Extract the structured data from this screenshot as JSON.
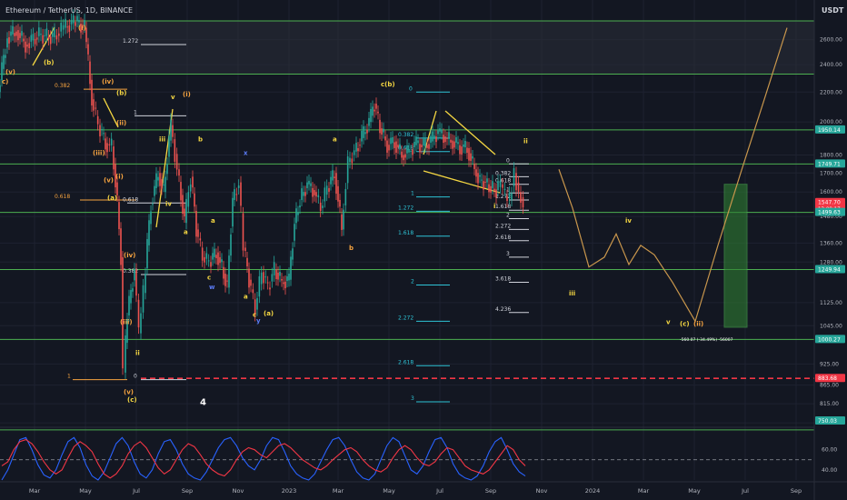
{
  "header": {
    "symbol_title": "Ethereum / TetherUS, 1D, BINANCE",
    "currency": "USDT"
  },
  "chart_data": {
    "type": "line",
    "ylim": [
      765,
      2800
    ],
    "y_scale": "log",
    "y_ticks": [
      2600,
      2400,
      2200,
      2000,
      1800,
      1700,
      1600,
      1480,
      1360,
      1280,
      1125,
      1045,
      925,
      865,
      815,
      767
    ],
    "x_ticks": [
      "Mar",
      "May",
      "Jul",
      "Sep",
      "Nov",
      "2023",
      "Mar",
      "May",
      "Jul",
      "Sep",
      "Nov",
      "2024",
      "Mar",
      "May",
      "Jul",
      "Sep"
    ],
    "price_tags": [
      {
        "label": "1950.14",
        "value": 1950.14,
        "color": "#26a69a"
      },
      {
        "label": "1749.71",
        "value": 1749.71,
        "color": "#26a69a"
      },
      {
        "label": "1547.70",
        "value": 1547.7,
        "color": "#f23645",
        "sub": "13:09:17"
      },
      {
        "label": "1499.63",
        "value": 1499.63,
        "color": "#26a69a"
      },
      {
        "label": "1249.94",
        "value": 1249.94,
        "color": "#26a69a"
      },
      {
        "label": "1000.27",
        "value": 1000.27,
        "color": "#26a69a"
      },
      {
        "label": "883.68",
        "value": 883.68,
        "color": "#f23645"
      },
      {
        "label": "750.03",
        "value": 750.03,
        "color": "#26a69a"
      }
    ],
    "horizontal_levels": [
      2760,
      2330,
      1950.14,
      1749.71,
      1499.63,
      1249.94,
      1000.27,
      750.03
    ],
    "support_line": 883.68,
    "price_series": [
      {
        "x": 0,
        "y": 2200
      },
      {
        "x": 10,
        "y": 2620
      },
      {
        "x": 20,
        "y": 2680
      },
      {
        "x": 30,
        "y": 2560
      },
      {
        "x": 45,
        "y": 2640
      },
      {
        "x": 60,
        "y": 2620
      },
      {
        "x": 72,
        "y": 2700
      },
      {
        "x": 85,
        "y": 2760
      },
      {
        "x": 95,
        "y": 2700
      },
      {
        "x": 103,
        "y": 2150
      },
      {
        "x": 110,
        "y": 1980
      },
      {
        "x": 118,
        "y": 1870
      },
      {
        "x": 125,
        "y": 1850
      },
      {
        "x": 131,
        "y": 1550
      },
      {
        "x": 135,
        "y": 1300
      },
      {
        "x": 138,
        "y": 900
      },
      {
        "x": 142,
        "y": 1080
      },
      {
        "x": 150,
        "y": 1250
      },
      {
        "x": 155,
        "y": 1020
      },
      {
        "x": 160,
        "y": 1160
      },
      {
        "x": 168,
        "y": 1540
      },
      {
        "x": 176,
        "y": 1700
      },
      {
        "x": 182,
        "y": 1600
      },
      {
        "x": 190,
        "y": 1980
      },
      {
        "x": 197,
        "y": 1720
      },
      {
        "x": 205,
        "y": 1450
      },
      {
        "x": 212,
        "y": 1680
      },
      {
        "x": 218,
        "y": 1420
      },
      {
        "x": 225,
        "y": 1300
      },
      {
        "x": 232,
        "y": 1280
      },
      {
        "x": 240,
        "y": 1320
      },
      {
        "x": 246,
        "y": 1260
      },
      {
        "x": 252,
        "y": 1180
      },
      {
        "x": 258,
        "y": 1560
      },
      {
        "x": 265,
        "y": 1650
      },
      {
        "x": 270,
        "y": 1340
      },
      {
        "x": 276,
        "y": 1210
      },
      {
        "x": 283,
        "y": 1100
      },
      {
        "x": 290,
        "y": 1240
      },
      {
        "x": 297,
        "y": 1180
      },
      {
        "x": 304,
        "y": 1250
      },
      {
        "x": 312,
        "y": 1200
      },
      {
        "x": 320,
        "y": 1210
      },
      {
        "x": 326,
        "y": 1450
      },
      {
        "x": 332,
        "y": 1560
      },
      {
        "x": 340,
        "y": 1640
      },
      {
        "x": 348,
        "y": 1600
      },
      {
        "x": 355,
        "y": 1520
      },
      {
        "x": 362,
        "y": 1620
      },
      {
        "x": 370,
        "y": 1700
      },
      {
        "x": 378,
        "y": 1420
      },
      {
        "x": 385,
        "y": 1760
      },
      {
        "x": 392,
        "y": 1820
      },
      {
        "x": 400,
        "y": 1900
      },
      {
        "x": 408,
        "y": 2000
      },
      {
        "x": 414,
        "y": 2120
      },
      {
        "x": 420,
        "y": 1960
      },
      {
        "x": 428,
        "y": 1860
      },
      {
        "x": 436,
        "y": 1880
      },
      {
        "x": 444,
        "y": 1800
      },
      {
        "x": 452,
        "y": 1820
      },
      {
        "x": 460,
        "y": 1870
      },
      {
        "x": 468,
        "y": 1850
      },
      {
        "x": 476,
        "y": 1880
      },
      {
        "x": 484,
        "y": 1940
      },
      {
        "x": 492,
        "y": 1900
      },
      {
        "x": 500,
        "y": 1880
      },
      {
        "x": 508,
        "y": 1850
      },
      {
        "x": 516,
        "y": 1840
      },
      {
        "x": 524,
        "y": 1720
      },
      {
        "x": 530,
        "y": 1660
      },
      {
        "x": 536,
        "y": 1650
      },
      {
        "x": 542,
        "y": 1620
      },
      {
        "x": 548,
        "y": 1610
      },
      {
        "x": 553,
        "y": 1640
      },
      {
        "x": 558,
        "y": 1580
      },
      {
        "x": 563,
        "y": 1560
      },
      {
        "x": 568,
        "y": 1700
      },
      {
        "x": 573,
        "y": 1600
      },
      {
        "x": 578,
        "y": 1547.7
      }
    ],
    "projection_path": [
      {
        "x": 615,
        "y": 1720
      },
      {
        "x": 630,
        "y": 1520
      },
      {
        "x": 648,
        "y": 1260
      },
      {
        "x": 665,
        "y": 1300
      },
      {
        "x": 678,
        "y": 1400
      },
      {
        "x": 692,
        "y": 1270
      },
      {
        "x": 705,
        "y": 1350
      },
      {
        "x": 720,
        "y": 1310
      },
      {
        "x": 740,
        "y": 1200
      },
      {
        "x": 765,
        "y": 1060
      },
      {
        "x": 790,
        "y": 1350
      },
      {
        "x": 815,
        "y": 1700
      },
      {
        "x": 840,
        "y": 2130
      },
      {
        "x": 866,
        "y": 2700
      }
    ],
    "target_box": {
      "top": 1640,
      "bottom": 1040,
      "label": "-560.07 (-34.49%) -56007"
    },
    "fib_levels": [
      {
        "label": "1.272",
        "value": 2560
      },
      {
        "label": "0.382",
        "value": 2220
      },
      {
        "label": "1",
        "value": 2040
      },
      {
        "label": "0.618",
        "value": 1560
      },
      {
        "label": "0.382",
        "value": 1230
      },
      {
        "label": "1",
        "value": 880
      },
      {
        "label": "0",
        "value": 880
      },
      {
        "label": "0.618",
        "value": 1545
      },
      {
        "label": "0",
        "value": 2200
      },
      {
        "label": "0.382",
        "value": 1900
      },
      {
        "label": "0.618",
        "value": 1820
      },
      {
        "label": "1",
        "value": 1575
      },
      {
        "label": "1.272",
        "value": 1505
      },
      {
        "label": "1.618",
        "value": 1390
      },
      {
        "label": "2",
        "value": 1190
      },
      {
        "label": "2.272",
        "value": 1060
      },
      {
        "label": "2.618",
        "value": 920
      },
      {
        "label": "3",
        "value": 820
      },
      {
        "label": "0",
        "value": 1750
      },
      {
        "label": "0.382",
        "value": 1680
      },
      {
        "label": "0.618",
        "value": 1640
      },
      {
        "label": "1",
        "value": 1595
      },
      {
        "label": "1.272",
        "value": 1560
      },
      {
        "label": "1.618",
        "value": 1510
      },
      {
        "label": "2",
        "value": 1470
      },
      {
        "label": "2.272",
        "value": 1420
      },
      {
        "label": "2.618",
        "value": 1370
      },
      {
        "label": "3",
        "value": 1300
      },
      {
        "label": "3.618",
        "value": 1200
      },
      {
        "label": "4.236",
        "value": 1090
      }
    ],
    "wave_labels": [
      {
        "text": "(v)",
        "x": 6,
        "y": 2330,
        "color": "#f7a440"
      },
      {
        "text": "c)",
        "x": 2,
        "y": 2260,
        "color": "#f7a440"
      },
      {
        "text": "(b)",
        "x": 48,
        "y": 2400,
        "color": "#f5d742"
      },
      {
        "text": "(i)",
        "x": 86,
        "y": 2680,
        "color": "#f7a440"
      },
      {
        "text": "(iv)",
        "x": 112,
        "y": 2260,
        "color": "#f7a440"
      },
      {
        "text": "(b)",
        "x": 128,
        "y": 2180,
        "color": "#f5d742"
      },
      {
        "text": "(ii)",
        "x": 128,
        "y": 1980,
        "color": "#f7a440"
      },
      {
        "text": "(iii)",
        "x": 102,
        "y": 1800,
        "color": "#f7a440"
      },
      {
        "text": "(v)",
        "x": 114,
        "y": 1650,
        "color": "#f7a440"
      },
      {
        "text": "(i)",
        "x": 127,
        "y": 1670,
        "color": "#f7a440"
      },
      {
        "text": "(a)",
        "x": 118,
        "y": 1560,
        "color": "#f5d742"
      },
      {
        "text": "(iv)",
        "x": 136,
        "y": 1300,
        "color": "#f7a440"
      },
      {
        "text": "(iii)",
        "x": 132,
        "y": 1050,
        "color": "#f7a440"
      },
      {
        "text": "ii",
        "x": 149,
        "y": 952,
        "color": "#f5d742"
      },
      {
        "text": "(v)",
        "x": 136,
        "y": 840,
        "color": "#f7a440"
      },
      {
        "text": "(c)",
        "x": 140,
        "y": 820,
        "color": "#f5d742"
      },
      {
        "text": "v",
        "x": 188,
        "y": 2150,
        "color": "#f5d742"
      },
      {
        "text": "(i)",
        "x": 201,
        "y": 2170,
        "color": "#f7a440"
      },
      {
        "text": "iii",
        "x": 175,
        "y": 1880,
        "color": "#f5d742"
      },
      {
        "text": "b",
        "x": 218,
        "y": 1880,
        "color": "#f5d742"
      },
      {
        "text": "iv",
        "x": 182,
        "y": 1530,
        "color": "#f5d742"
      },
      {
        "text": "a",
        "x": 202,
        "y": 1400,
        "color": "#f5d742"
      },
      {
        "text": "a",
        "x": 232,
        "y": 1450,
        "color": "#f5d742"
      },
      {
        "text": "c",
        "x": 228,
        "y": 1210,
        "color": "#f5d742"
      },
      {
        "text": "w",
        "x": 230,
        "y": 1175,
        "color": "#5b7cf7"
      },
      {
        "text": "x",
        "x": 268,
        "y": 1800,
        "color": "#5b7cf7"
      },
      {
        "text": "a",
        "x": 268,
        "y": 1140,
        "color": "#f5d742"
      },
      {
        "text": "c",
        "x": 278,
        "y": 1075,
        "color": "#f5d742"
      },
      {
        "text": "(a)",
        "x": 290,
        "y": 1080,
        "color": "#f5d742"
      },
      {
        "text": "y",
        "x": 282,
        "y": 1055,
        "color": "#5b7cf7"
      },
      {
        "text": "a",
        "x": 366,
        "y": 1880,
        "color": "#f5d742"
      },
      {
        "text": "b",
        "x": 384,
        "y": 1330,
        "color": "#f7a440"
      },
      {
        "text": "c(b)",
        "x": 419,
        "y": 2240,
        "color": "#f5d742"
      },
      {
        "text": "ii",
        "x": 576,
        "y": 1870,
        "color": "#f5d742"
      },
      {
        "text": "i",
        "x": 543,
        "y": 1520,
        "color": "#f5d742"
      },
      {
        "text": "iv",
        "x": 688,
        "y": 1450,
        "color": "#f5d742"
      },
      {
        "text": "iii",
        "x": 626,
        "y": 1150,
        "color": "#f5d742"
      },
      {
        "text": "v",
        "x": 733,
        "y": 1050,
        "color": "#f5d742"
      },
      {
        "text": "(c)",
        "x": 748,
        "y": 1045,
        "color": "#f5d742"
      },
      {
        "text": "(ii)",
        "x": 763,
        "y": 1045,
        "color": "#f7a440"
      },
      {
        "text": "4",
        "x": 220,
        "y": 812,
        "color": "#ffffff"
      }
    ],
    "oscillator": {
      "ylim": [
        30,
        75
      ],
      "ticks": [
        60,
        40
      ],
      "midline": 50,
      "rsi": [
        44,
        48,
        60,
        68,
        70,
        66,
        58,
        48,
        40,
        36,
        40,
        52,
        63,
        68,
        64,
        58,
        46,
        36,
        32,
        36,
        44,
        56,
        64,
        68,
        62,
        52,
        42,
        36,
        40,
        50,
        60,
        66,
        63,
        55,
        46,
        40,
        36,
        34,
        40,
        50,
        58,
        62,
        60,
        55,
        52,
        58,
        64,
        66,
        62,
        56,
        50,
        46,
        42,
        40,
        44,
        50,
        55,
        60,
        62,
        58,
        50,
        44,
        40,
        38,
        42,
        52,
        60,
        64,
        60,
        52,
        46,
        44,
        48,
        56,
        62,
        60,
        52,
        44,
        40,
        38,
        36,
        40,
        48,
        56,
        64,
        60,
        50,
        44
      ],
      "stoch": [
        30,
        40,
        55,
        70,
        72,
        60,
        45,
        35,
        32,
        40,
        55,
        68,
        72,
        62,
        45,
        34,
        30,
        38,
        52,
        66,
        72,
        64,
        48,
        36,
        32,
        40,
        56,
        68,
        70,
        60,
        46,
        36,
        32,
        30,
        38,
        50,
        62,
        70,
        72,
        64,
        52,
        44,
        40,
        50,
        64,
        72,
        70,
        58,
        44,
        36,
        32,
        30,
        36,
        48,
        60,
        70,
        72,
        64,
        50,
        38,
        32,
        30,
        36,
        50,
        64,
        72,
        68,
        54,
        40,
        36,
        44,
        58,
        70,
        72,
        62,
        46,
        36,
        32,
        30,
        34,
        44,
        58,
        68,
        72,
        60,
        46,
        38,
        34
      ]
    }
  },
  "colors": {
    "background": "#131722",
    "grid": "#1e2230",
    "level_green": "#4caf50",
    "candle_up": "#26a69a",
    "candle_down": "#ef5350",
    "fib_cyan": "#2ec4d6",
    "wave_yellow": "#f5d742",
    "wave_orange": "#f7a440",
    "rsi": "#f23645",
    "stoch": "#2962ff",
    "projection": "#c8964c",
    "target_box": "#2e7d32"
  }
}
